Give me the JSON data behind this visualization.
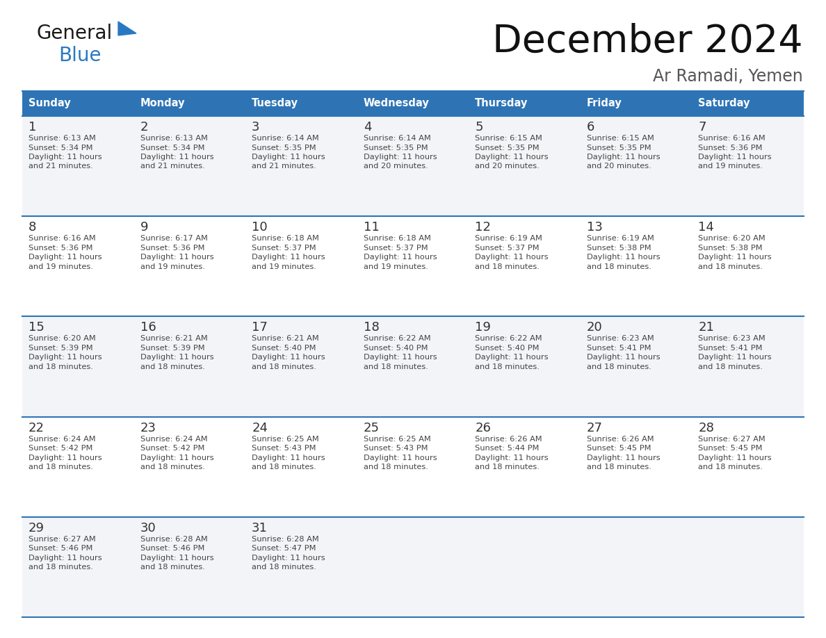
{
  "title": "December 2024",
  "subtitle": "Ar Ramadi, Yemen",
  "header_color": "#2E74B5",
  "header_text_color": "#FFFFFF",
  "cell_bg_white": "#FFFFFF",
  "cell_bg_gray": "#F2F4F7",
  "day_headers": [
    "Sunday",
    "Monday",
    "Tuesday",
    "Wednesday",
    "Thursday",
    "Friday",
    "Saturday"
  ],
  "grid_line_color": "#2E74B5",
  "text_color": "#444444",
  "day_num_color": "#333333",
  "calendar_data": [
    [
      {
        "day": 1,
        "sunrise": "6:13 AM",
        "sunset": "5:34 PM",
        "daylight_line1": "Daylight: 11 hours",
        "daylight_line2": "and 21 minutes."
      },
      {
        "day": 2,
        "sunrise": "6:13 AM",
        "sunset": "5:34 PM",
        "daylight_line1": "Daylight: 11 hours",
        "daylight_line2": "and 21 minutes."
      },
      {
        "day": 3,
        "sunrise": "6:14 AM",
        "sunset": "5:35 PM",
        "daylight_line1": "Daylight: 11 hours",
        "daylight_line2": "and 21 minutes."
      },
      {
        "day": 4,
        "sunrise": "6:14 AM",
        "sunset": "5:35 PM",
        "daylight_line1": "Daylight: 11 hours",
        "daylight_line2": "and 20 minutes."
      },
      {
        "day": 5,
        "sunrise": "6:15 AM",
        "sunset": "5:35 PM",
        "daylight_line1": "Daylight: 11 hours",
        "daylight_line2": "and 20 minutes."
      },
      {
        "day": 6,
        "sunrise": "6:15 AM",
        "sunset": "5:35 PM",
        "daylight_line1": "Daylight: 11 hours",
        "daylight_line2": "and 20 minutes."
      },
      {
        "day": 7,
        "sunrise": "6:16 AM",
        "sunset": "5:36 PM",
        "daylight_line1": "Daylight: 11 hours",
        "daylight_line2": "and 19 minutes."
      }
    ],
    [
      {
        "day": 8,
        "sunrise": "6:16 AM",
        "sunset": "5:36 PM",
        "daylight_line1": "Daylight: 11 hours",
        "daylight_line2": "and 19 minutes."
      },
      {
        "day": 9,
        "sunrise": "6:17 AM",
        "sunset": "5:36 PM",
        "daylight_line1": "Daylight: 11 hours",
        "daylight_line2": "and 19 minutes."
      },
      {
        "day": 10,
        "sunrise": "6:18 AM",
        "sunset": "5:37 PM",
        "daylight_line1": "Daylight: 11 hours",
        "daylight_line2": "and 19 minutes."
      },
      {
        "day": 11,
        "sunrise": "6:18 AM",
        "sunset": "5:37 PM",
        "daylight_line1": "Daylight: 11 hours",
        "daylight_line2": "and 19 minutes."
      },
      {
        "day": 12,
        "sunrise": "6:19 AM",
        "sunset": "5:37 PM",
        "daylight_line1": "Daylight: 11 hours",
        "daylight_line2": "and 18 minutes."
      },
      {
        "day": 13,
        "sunrise": "6:19 AM",
        "sunset": "5:38 PM",
        "daylight_line1": "Daylight: 11 hours",
        "daylight_line2": "and 18 minutes."
      },
      {
        "day": 14,
        "sunrise": "6:20 AM",
        "sunset": "5:38 PM",
        "daylight_line1": "Daylight: 11 hours",
        "daylight_line2": "and 18 minutes."
      }
    ],
    [
      {
        "day": 15,
        "sunrise": "6:20 AM",
        "sunset": "5:39 PM",
        "daylight_line1": "Daylight: 11 hours",
        "daylight_line2": "and 18 minutes."
      },
      {
        "day": 16,
        "sunrise": "6:21 AM",
        "sunset": "5:39 PM",
        "daylight_line1": "Daylight: 11 hours",
        "daylight_line2": "and 18 minutes."
      },
      {
        "day": 17,
        "sunrise": "6:21 AM",
        "sunset": "5:40 PM",
        "daylight_line1": "Daylight: 11 hours",
        "daylight_line2": "and 18 minutes."
      },
      {
        "day": 18,
        "sunrise": "6:22 AM",
        "sunset": "5:40 PM",
        "daylight_line1": "Daylight: 11 hours",
        "daylight_line2": "and 18 minutes."
      },
      {
        "day": 19,
        "sunrise": "6:22 AM",
        "sunset": "5:40 PM",
        "daylight_line1": "Daylight: 11 hours",
        "daylight_line2": "and 18 minutes."
      },
      {
        "day": 20,
        "sunrise": "6:23 AM",
        "sunset": "5:41 PM",
        "daylight_line1": "Daylight: 11 hours",
        "daylight_line2": "and 18 minutes."
      },
      {
        "day": 21,
        "sunrise": "6:23 AM",
        "sunset": "5:41 PM",
        "daylight_line1": "Daylight: 11 hours",
        "daylight_line2": "and 18 minutes."
      }
    ],
    [
      {
        "day": 22,
        "sunrise": "6:24 AM",
        "sunset": "5:42 PM",
        "daylight_line1": "Daylight: 11 hours",
        "daylight_line2": "and 18 minutes."
      },
      {
        "day": 23,
        "sunrise": "6:24 AM",
        "sunset": "5:42 PM",
        "daylight_line1": "Daylight: 11 hours",
        "daylight_line2": "and 18 minutes."
      },
      {
        "day": 24,
        "sunrise": "6:25 AM",
        "sunset": "5:43 PM",
        "daylight_line1": "Daylight: 11 hours",
        "daylight_line2": "and 18 minutes."
      },
      {
        "day": 25,
        "sunrise": "6:25 AM",
        "sunset": "5:43 PM",
        "daylight_line1": "Daylight: 11 hours",
        "daylight_line2": "and 18 minutes."
      },
      {
        "day": 26,
        "sunrise": "6:26 AM",
        "sunset": "5:44 PM",
        "daylight_line1": "Daylight: 11 hours",
        "daylight_line2": "and 18 minutes."
      },
      {
        "day": 27,
        "sunrise": "6:26 AM",
        "sunset": "5:45 PM",
        "daylight_line1": "Daylight: 11 hours",
        "daylight_line2": "and 18 minutes."
      },
      {
        "day": 28,
        "sunrise": "6:27 AM",
        "sunset": "5:45 PM",
        "daylight_line1": "Daylight: 11 hours",
        "daylight_line2": "and 18 minutes."
      }
    ],
    [
      {
        "day": 29,
        "sunrise": "6:27 AM",
        "sunset": "5:46 PM",
        "daylight_line1": "Daylight: 11 hours",
        "daylight_line2": "and 18 minutes."
      },
      {
        "day": 30,
        "sunrise": "6:28 AM",
        "sunset": "5:46 PM",
        "daylight_line1": "Daylight: 11 hours",
        "daylight_line2": "and 18 minutes."
      },
      {
        "day": 31,
        "sunrise": "6:28 AM",
        "sunset": "5:47 PM",
        "daylight_line1": "Daylight: 11 hours",
        "daylight_line2": "and 18 minutes."
      },
      null,
      null,
      null,
      null
    ]
  ],
  "logo_general_color": "#1a1a1a",
  "logo_blue_color": "#2979C2"
}
